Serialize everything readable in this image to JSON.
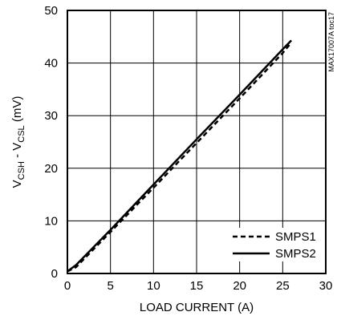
{
  "chart_data": {
    "type": "line",
    "xlabel": "LOAD CURRENT (A)",
    "ylabel_prefix": "V",
    "ylabel_sub1": "CSH",
    "ylabel_mid": " - V",
    "ylabel_sub2": "CSL",
    "ylabel_suffix": " (mV)",
    "xlim": [
      0,
      30
    ],
    "ylim": [
      0,
      50
    ],
    "xticks": [
      0,
      5,
      10,
      15,
      20,
      25,
      30
    ],
    "yticks": [
      0,
      10,
      20,
      30,
      40,
      50
    ],
    "grid": true,
    "legend_position": "bottom-right",
    "code": "MAX17007A toc17",
    "series": [
      {
        "name": "SMPS1",
        "style": "dashed",
        "color": "#000000",
        "x": [
          0,
          1,
          5,
          10,
          15,
          20,
          25,
          26
        ],
        "y": [
          0.4,
          1.2,
          7.9,
          16.3,
          24.8,
          33.3,
          41.9,
          43.9
        ]
      },
      {
        "name": "SMPS2",
        "style": "solid",
        "color": "#000000",
        "x": [
          0,
          1,
          5,
          10,
          15,
          20,
          25,
          26
        ],
        "y": [
          0.4,
          1.6,
          8.3,
          16.9,
          25.5,
          34.0,
          42.6,
          44.3
        ]
      }
    ]
  }
}
